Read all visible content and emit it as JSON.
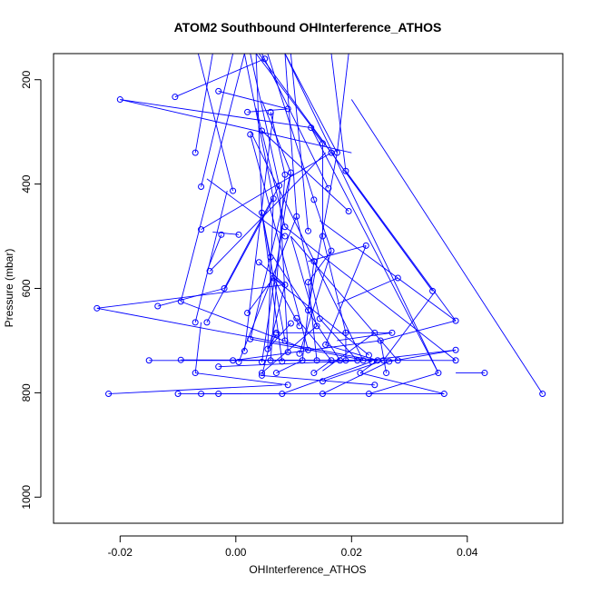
{
  "chart_data": {
    "type": "line",
    "title": "ATOM2 Southbound OHInterference_ATHOS",
    "xlabel": "OHInterference_ATHOS",
    "ylabel": "Pressure (mbar)",
    "xlim": [
      -0.0315,
      0.0565
    ],
    "ylim": [
      1050,
      150
    ],
    "y_inverted": true,
    "grid": false,
    "legend": "none",
    "x_ticks": [
      -0.02,
      0.0,
      0.02,
      0.04
    ],
    "x_tick_labels": [
      "-0.02",
      "0.00",
      "0.02",
      "0.04"
    ],
    "y_ticks": [
      200,
      400,
      600,
      800,
      1000
    ],
    "y_tick_labels": [
      "200",
      "400",
      "600",
      "800",
      "1000"
    ],
    "colors": {
      "series": "#0000ff",
      "axis": "#000000",
      "background": "#ffffff"
    },
    "series": [
      {
        "marker": "open-circle",
        "points": [
          [
            0.005,
            160
          ],
          [
            0.009,
            256
          ],
          [
            -0.0105,
            233
          ],
          [
            -0.02,
            238
          ],
          [
            0.013,
            292
          ],
          [
            -0.003,
            222
          ],
          [
            0.002,
            262
          ],
          [
            0.0045,
            298
          ],
          [
            -0.007,
            340
          ],
          [
            0.015,
            322
          ],
          [
            0.0165,
            340
          ],
          [
            0.006,
            262
          ],
          [
            0.0085,
            382
          ],
          [
            0.0025,
            305
          ],
          [
            0.0175,
            340
          ],
          [
            0.019,
            375
          ],
          [
            0.016,
            408
          ],
          [
            0.0135,
            430
          ],
          [
            0.0095,
            378
          ],
          [
            0.0075,
            403
          ],
          [
            -0.0005,
            413
          ],
          [
            -0.006,
            405
          ],
          [
            0.0045,
            455
          ],
          [
            0.0065,
            428
          ],
          [
            0.0085,
            482
          ],
          [
            0.0105,
            462
          ],
          [
            0.0195,
            452
          ],
          [
            0.0125,
            490
          ],
          [
            0.015,
            500
          ],
          [
            0.0165,
            528
          ],
          [
            0.0225,
            518
          ],
          [
            0.0085,
            500
          ],
          [
            0.0005,
            497
          ],
          [
            -0.0025,
            497
          ],
          [
            -0.006,
            487
          ],
          [
            -0.0045,
            567
          ],
          [
            -0.002,
            600
          ],
          [
            0.006,
            540
          ],
          [
            0.004,
            550
          ],
          [
            0.0085,
            593
          ],
          [
            0.0065,
            580
          ],
          [
            0.0125,
            588
          ],
          [
            0.0135,
            548
          ],
          [
            0.028,
            580
          ],
          [
            0.034,
            605
          ],
          [
            0.038,
            662
          ],
          [
            -0.0095,
            625
          ],
          [
            -0.0135,
            634
          ],
          [
            -0.024,
            638
          ],
          [
            0.002,
            647
          ],
          [
            -0.005,
            665
          ],
          [
            -0.007,
            665
          ],
          [
            0.0125,
            642
          ],
          [
            0.0145,
            658
          ],
          [
            0.014,
            672
          ],
          [
            0.011,
            672
          ],
          [
            0.0095,
            667
          ],
          [
            0.0105,
            657
          ],
          [
            0.007,
            685
          ],
          [
            0.007,
            688
          ],
          [
            0.019,
            685
          ],
          [
            0.024,
            685
          ],
          [
            0.027,
            685
          ],
          [
            0.025,
            700
          ],
          [
            0.0155,
            708
          ],
          [
            0.023,
            728
          ],
          [
            0.0025,
            697
          ],
          [
            0.0015,
            720
          ],
          [
            0.0055,
            716
          ],
          [
            0.0085,
            700
          ],
          [
            0.0125,
            718
          ],
          [
            0.038,
            718
          ],
          [
            0.022,
            738
          ],
          [
            0.0245,
            738
          ],
          [
            0.0255,
            738
          ],
          [
            0.028,
            738
          ],
          [
            0.038,
            738
          ],
          [
            -0.0095,
            737
          ],
          [
            -0.015,
            738
          ],
          [
            -0.0005,
            738
          ],
          [
            0.0005,
            741
          ],
          [
            0.0045,
            741
          ],
          [
            0.006,
            738
          ],
          [
            0.008,
            740
          ],
          [
            0.009,
            722
          ],
          [
            0.011,
            725
          ],
          [
            0.0115,
            738
          ],
          [
            0.014,
            738
          ],
          [
            0.0165,
            738
          ],
          [
            0.018,
            738
          ],
          [
            0.019,
            738
          ],
          [
            0.021,
            738
          ],
          [
            0.0235,
            740
          ],
          [
            0.0265,
            740
          ],
          [
            -0.003,
            750
          ],
          [
            -0.007,
            762
          ],
          [
            0.0045,
            767
          ],
          [
            0.0045,
            762
          ],
          [
            0.007,
            762
          ],
          [
            0.0135,
            762
          ],
          [
            0.0215,
            762
          ],
          [
            0.026,
            762
          ],
          [
            0.035,
            762
          ],
          [
            0.043,
            762
          ],
          [
            0.015,
            778
          ],
          [
            0.009,
            785
          ],
          [
            0.024,
            785
          ],
          [
            -0.022,
            802
          ],
          [
            -0.01,
            802
          ],
          [
            -0.006,
            802
          ],
          [
            -0.003,
            802
          ],
          [
            0.008,
            802
          ],
          [
            0.015,
            802
          ],
          [
            0.023,
            802
          ],
          [
            0.036,
            802
          ],
          [
            0.053,
            802
          ]
        ],
        "connections": [
          [
            0.005,
            160,
            -0.0105,
            233
          ],
          [
            0.009,
            256,
            0.002,
            262
          ],
          [
            -0.02,
            238,
            0.013,
            292
          ],
          [
            -0.02,
            238,
            0.02,
            340
          ],
          [
            -0.003,
            222,
            0.009,
            256
          ],
          [
            0.013,
            292,
            0.015,
            322
          ],
          [
            0.006,
            262,
            0.0085,
            382
          ],
          [
            -0.007,
            340,
            -0.004,
            150
          ],
          [
            0.0165,
            340,
            0.0035,
            150
          ],
          [
            0.0175,
            340,
            0.0195,
            150
          ],
          [
            0.0175,
            340,
            0.0085,
            150
          ],
          [
            0.019,
            375,
            0.0165,
            150
          ],
          [
            0.016,
            408,
            0.0045,
            150
          ],
          [
            0.0135,
            430,
            0.0055,
            150
          ],
          [
            0.0095,
            378,
            0.0045,
            240
          ],
          [
            0.0075,
            403,
            0.0025,
            150
          ],
          [
            -0.0005,
            413,
            -0.0065,
            150
          ],
          [
            -0.006,
            405,
            -0.0005,
            150
          ],
          [
            0.0045,
            455,
            0.0035,
            150
          ],
          [
            0.0065,
            428,
            0.0015,
            150
          ],
          [
            0.0085,
            482,
            0.0035,
            255
          ],
          [
            0.0105,
            462,
            0.0085,
            150
          ],
          [
            0.0195,
            452,
            0.0045,
            298
          ],
          [
            0.0125,
            490,
            0.0095,
            150
          ],
          [
            0.015,
            500,
            0.015,
            322
          ],
          [
            0.0165,
            528,
            0.0135,
            430
          ],
          [
            0.0225,
            518,
            0.0125,
            548
          ],
          [
            0.0085,
            500,
            -0.005,
            390
          ],
          [
            0.0005,
            497,
            -0.004,
            492
          ],
          [
            -0.0025,
            497,
            -0.005,
            567
          ],
          [
            -0.006,
            487,
            0.0165,
            340
          ],
          [
            -0.0045,
            567,
            0.0155,
            340
          ],
          [
            -0.002,
            600,
            0.0075,
            403
          ],
          [
            0.006,
            540,
            0.0045,
            455
          ],
          [
            0.004,
            550,
            0.0085,
            593
          ],
          [
            0.0085,
            593,
            0.0065,
            580
          ],
          [
            0.0125,
            588,
            0.0165,
            528
          ],
          [
            0.028,
            580,
            0.0175,
            630
          ],
          [
            0.034,
            605,
            0.0165,
            340
          ],
          [
            0.038,
            662,
            0.019,
            375
          ],
          [
            0.038,
            662,
            0.0145,
            470
          ],
          [
            -0.0095,
            625,
            0.0125,
            718
          ],
          [
            -0.0135,
            634,
            -0.002,
            600
          ],
          [
            -0.024,
            638,
            0.0085,
            593
          ],
          [
            -0.024,
            638,
            0.024,
            738
          ],
          [
            0.002,
            647,
            0.0065,
            580
          ],
          [
            -0.005,
            665,
            0.0065,
            428
          ],
          [
            -0.007,
            665,
            -0.0015,
            413
          ],
          [
            0.0125,
            642,
            0.0175,
            340
          ],
          [
            0.0145,
            658,
            0.0105,
            462
          ],
          [
            0.014,
            672,
            0.0095,
            500
          ],
          [
            0.011,
            672,
            0.0065,
            580
          ],
          [
            0.0095,
            667,
            0.0055,
            716
          ],
          [
            0.007,
            685,
            0.027,
            685
          ],
          [
            0.007,
            688,
            0.0055,
            716
          ],
          [
            0.019,
            685,
            0.015,
            500
          ],
          [
            0.024,
            685,
            0.015,
            758
          ],
          [
            0.027,
            685,
            0.0175,
            700
          ],
          [
            0.025,
            700,
            0.038,
            662
          ],
          [
            0.0155,
            708,
            0.0225,
            518
          ],
          [
            0.023,
            728,
            0.0065,
            580
          ],
          [
            0.0025,
            697,
            0.0095,
            378
          ],
          [
            0.0015,
            720,
            0.0065,
            262
          ],
          [
            0.0055,
            716,
            0.0065,
            428
          ],
          [
            0.0085,
            700,
            0.0045,
            455
          ],
          [
            0.0125,
            718,
            0.0025,
            305
          ],
          [
            0.038,
            718,
            0.0225,
            738
          ],
          [
            0.022,
            738,
            0.0025,
            298
          ],
          [
            0.0245,
            738,
            0.0155,
            708
          ],
          [
            0.0255,
            738,
            0.0345,
            605
          ],
          [
            0.028,
            738,
            0.0095,
            500
          ],
          [
            0.038,
            738,
            0.0085,
            482
          ],
          [
            -0.0095,
            737,
            0.038,
            738
          ],
          [
            -0.015,
            738,
            0.028,
            738
          ],
          [
            -0.0005,
            738,
            0.025,
            700
          ],
          [
            0.0005,
            741,
            0.0105,
            462
          ],
          [
            0.0045,
            741,
            0.0095,
            378
          ],
          [
            0.006,
            738,
            0.0085,
            382
          ],
          [
            0.008,
            740,
            0.0045,
            455
          ],
          [
            0.009,
            722,
            0.0075,
            403
          ],
          [
            0.011,
            725,
            0.0165,
            528
          ],
          [
            0.0115,
            738,
            0.0135,
            548
          ],
          [
            0.014,
            738,
            0.0125,
            588
          ],
          [
            0.0165,
            738,
            0.0105,
            657
          ],
          [
            0.018,
            738,
            0.0065,
            540
          ],
          [
            0.019,
            738,
            0.019,
            685
          ],
          [
            0.021,
            738,
            0.0145,
            658
          ],
          [
            0.0235,
            740,
            0.0025,
            697
          ],
          [
            0.0265,
            740,
            0.038,
            718
          ],
          [
            -0.003,
            750,
            0.022,
            738
          ],
          [
            -0.007,
            762,
            -0.006,
            665
          ],
          [
            0.0045,
            767,
            0.0085,
            593
          ],
          [
            0.0045,
            762,
            0.014,
            672
          ],
          [
            0.007,
            762,
            0.0115,
            738
          ],
          [
            0.0135,
            762,
            0.0165,
            738
          ],
          [
            0.0215,
            762,
            0.0245,
            738
          ],
          [
            0.026,
            762,
            0.025,
            700
          ],
          [
            0.035,
            762,
            0.013,
            292
          ],
          [
            0.043,
            762,
            0.038,
            762
          ],
          [
            0.015,
            778,
            0.0255,
            738
          ],
          [
            0.009,
            785,
            -0.007,
            762
          ],
          [
            0.024,
            785,
            0.0045,
            767
          ],
          [
            -0.022,
            802,
            0.008,
            785
          ],
          [
            -0.01,
            802,
            0.036,
            802
          ],
          [
            -0.006,
            802,
            0.008,
            802
          ],
          [
            -0.003,
            802,
            0.001,
            802
          ],
          [
            0.008,
            802,
            0.0235,
            740
          ],
          [
            0.015,
            802,
            0.0265,
            740
          ],
          [
            0.023,
            802,
            0.035,
            762
          ],
          [
            0.036,
            802,
            0.0215,
            762
          ],
          [
            0.053,
            802,
            0.02,
            238
          ],
          [
            0.0085,
            150,
            0.035,
            762
          ],
          [
            0.004,
            150,
            0.034,
            605
          ],
          [
            0.0015,
            150,
            -0.0095,
            625
          ]
        ]
      }
    ]
  }
}
